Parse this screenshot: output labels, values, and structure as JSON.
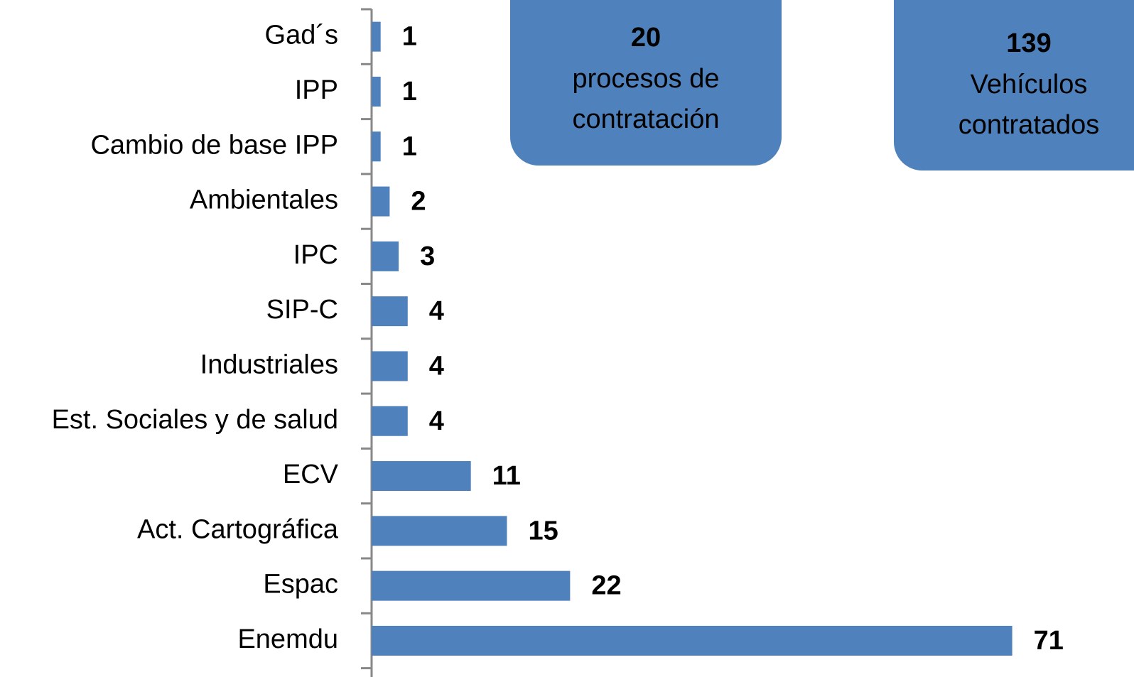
{
  "chart_data": {
    "type": "bar",
    "orientation": "horizontal",
    "categories": [
      "Gad´s",
      "IPP",
      "Cambio de base IPP",
      "Ambientales",
      "IPC",
      "SIP-C",
      "Industriales",
      "Est. Sociales y de salud",
      "ECV",
      "Act. Cartográfica",
      "Espac",
      "Enemdu"
    ],
    "values": [
      1,
      1,
      1,
      2,
      3,
      4,
      4,
      4,
      11,
      15,
      22,
      71
    ],
    "color": "#4f81bd",
    "xlim": [
      0,
      83
    ],
    "annotations": [
      {
        "number": 20,
        "lines": [
          "procesos de",
          "contratación"
        ]
      },
      {
        "number": 139,
        "lines": [
          "Vehículos",
          "contratados"
        ]
      }
    ]
  }
}
